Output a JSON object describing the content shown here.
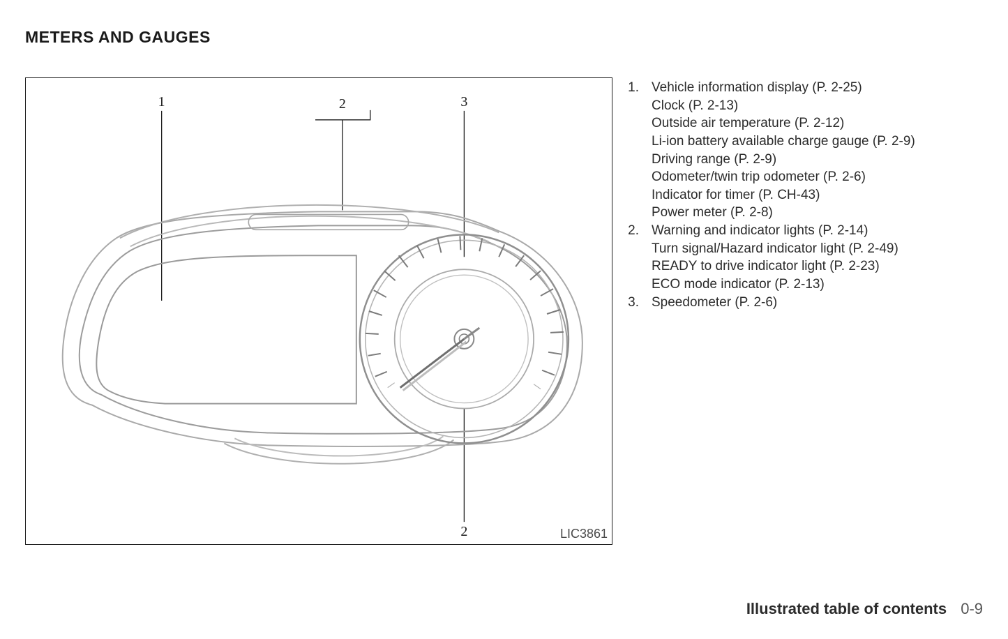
{
  "title": "METERS AND GAUGES",
  "figure_id": "LIC3861",
  "callouts": {
    "top1": "1",
    "top2": "2",
    "top3": "3",
    "bottom2": "2"
  },
  "legend": [
    {
      "num": "1.",
      "lines": [
        "Vehicle information display (P. 2-25)",
        "Clock (P. 2-13)",
        "Outside air temperature (P. 2-12)",
        "Li-ion battery available charge gauge (P. 2-9)",
        "Driving range (P. 2-9)",
        "Odometer/twin trip odometer (P. 2-6)",
        "Indicator for timer (P. CH-43)",
        "Power meter (P. 2-8)"
      ]
    },
    {
      "num": "2.",
      "lines": [
        "Warning and indicator lights (P. 2-14)",
        "Turn signal/Hazard indicator light (P. 2-49)",
        "READY to drive indicator light (P. 2-23)",
        "ECO mode indicator (P. 2-13)"
      ]
    },
    {
      "num": "3.",
      "lines": [
        "Speedometer (P. 2-6)"
      ]
    }
  ],
  "footer": {
    "section": "Illustrated table of contents",
    "page": "0-9"
  },
  "colors": {
    "text": "#1a1a1a",
    "stroke_light": "#b8b8b8",
    "stroke_mid": "#888888",
    "stroke_dark": "#555555",
    "background": "#ffffff"
  }
}
